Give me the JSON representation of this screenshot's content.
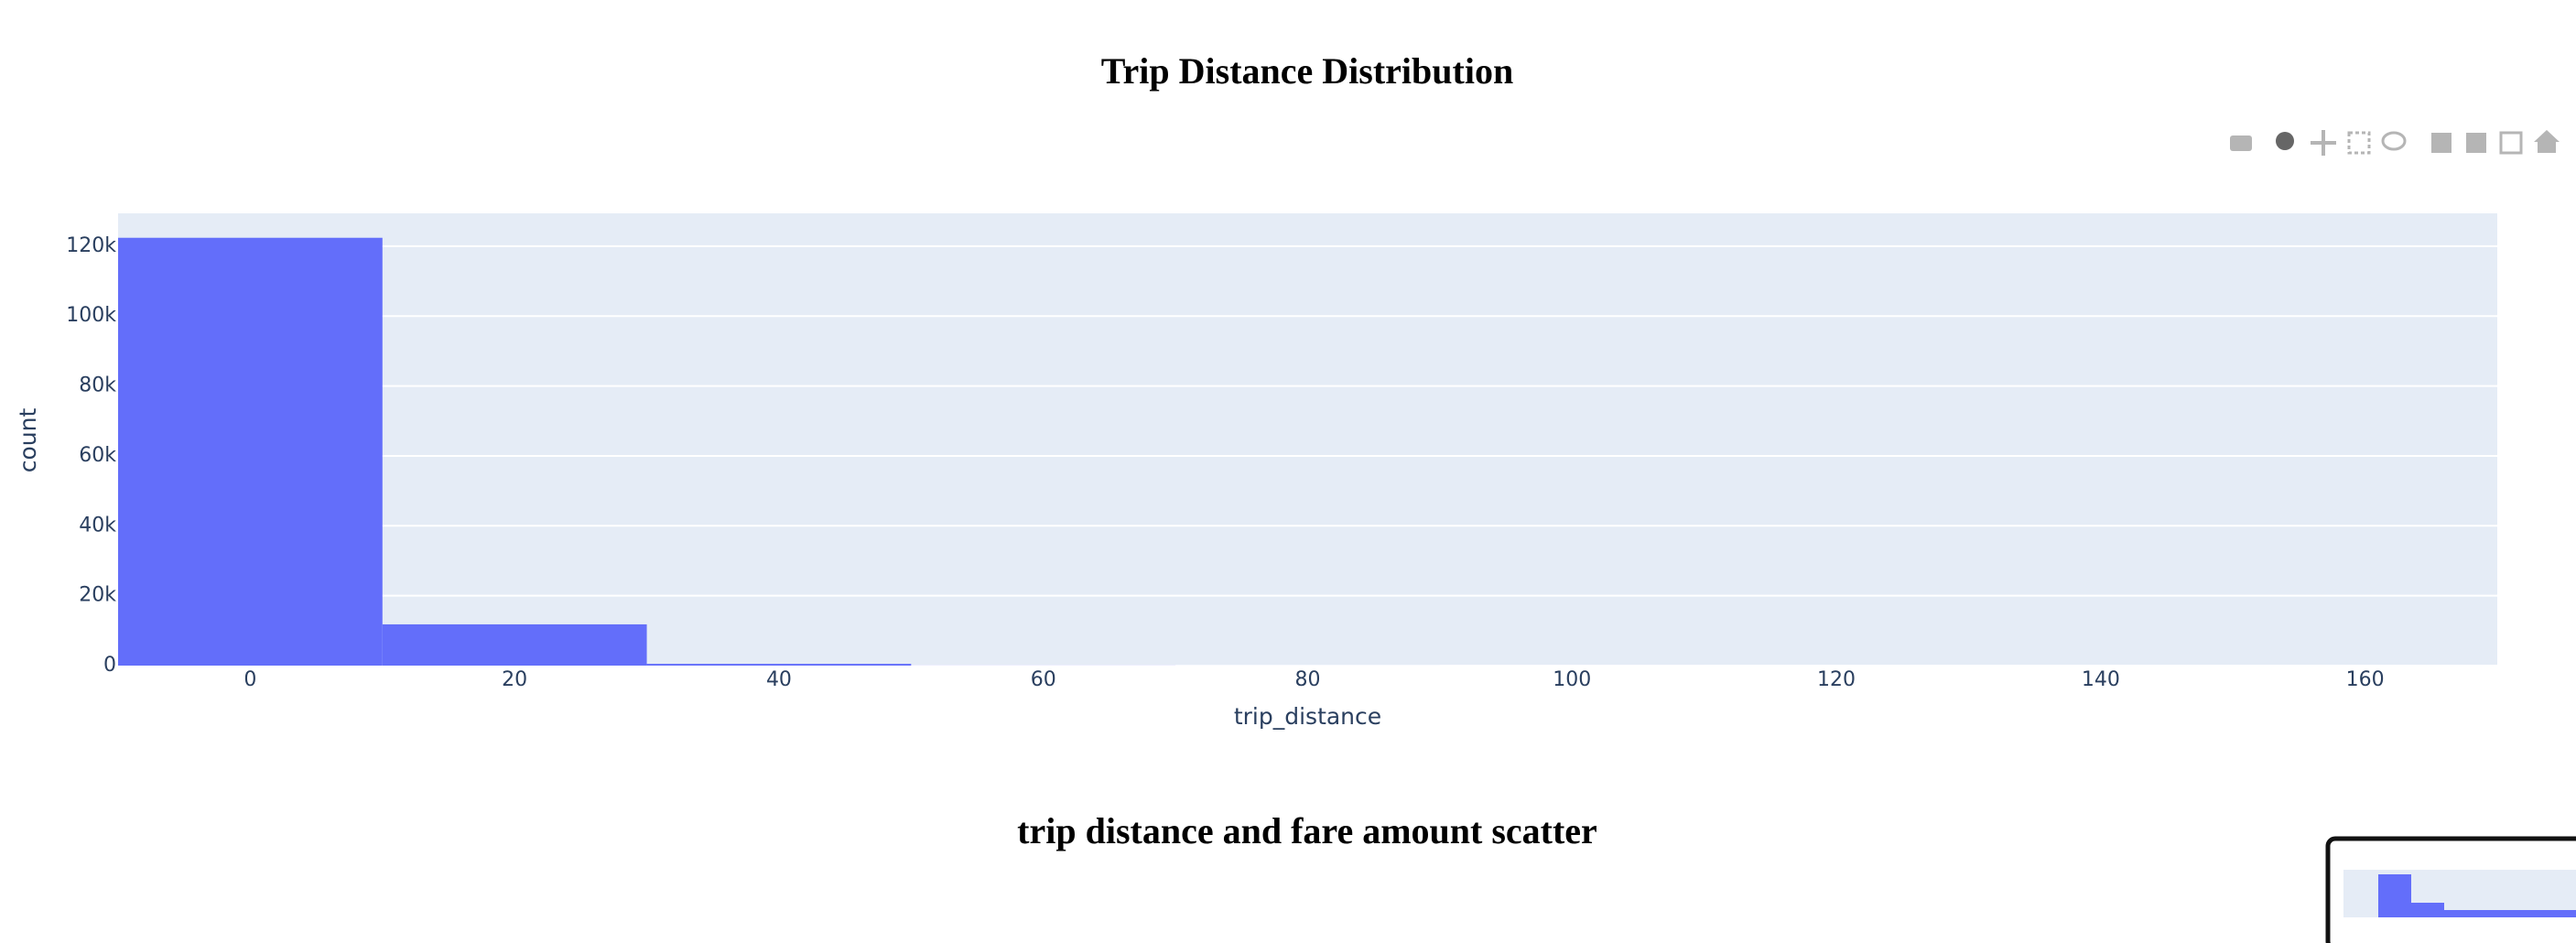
{
  "chart_data": {
    "type": "histogram",
    "title": "Trip Distance Distribution",
    "x_label": "trip_distance",
    "y_label": "count",
    "bins": [
      -10,
      10,
      30,
      50,
      70,
      90,
      110,
      130,
      150,
      170
    ],
    "counts": [
      122400,
      11800,
      500,
      30,
      10,
      5,
      3,
      2,
      1
    ],
    "color": "#636efa",
    "xlim": [
      -10,
      170
    ],
    "xticks": [
      0,
      20,
      40,
      60,
      80,
      100,
      120,
      140,
      160
    ],
    "ylim": [
      0,
      129400
    ],
    "yticks": [
      0,
      {
        "value": 20000,
        "label": "20k"
      },
      {
        "value": 40000,
        "label": "40k"
      },
      {
        "value": 60000,
        "label": "60k"
      },
      {
        "value": 80000,
        "label": "80k"
      },
      {
        "value": 100000,
        "label": "100k"
      },
      {
        "value": 120000,
        "label": "120k"
      }
    ],
    "grid": true
  },
  "next_chart": {
    "title": "trip distance and fare amount scatter"
  }
}
